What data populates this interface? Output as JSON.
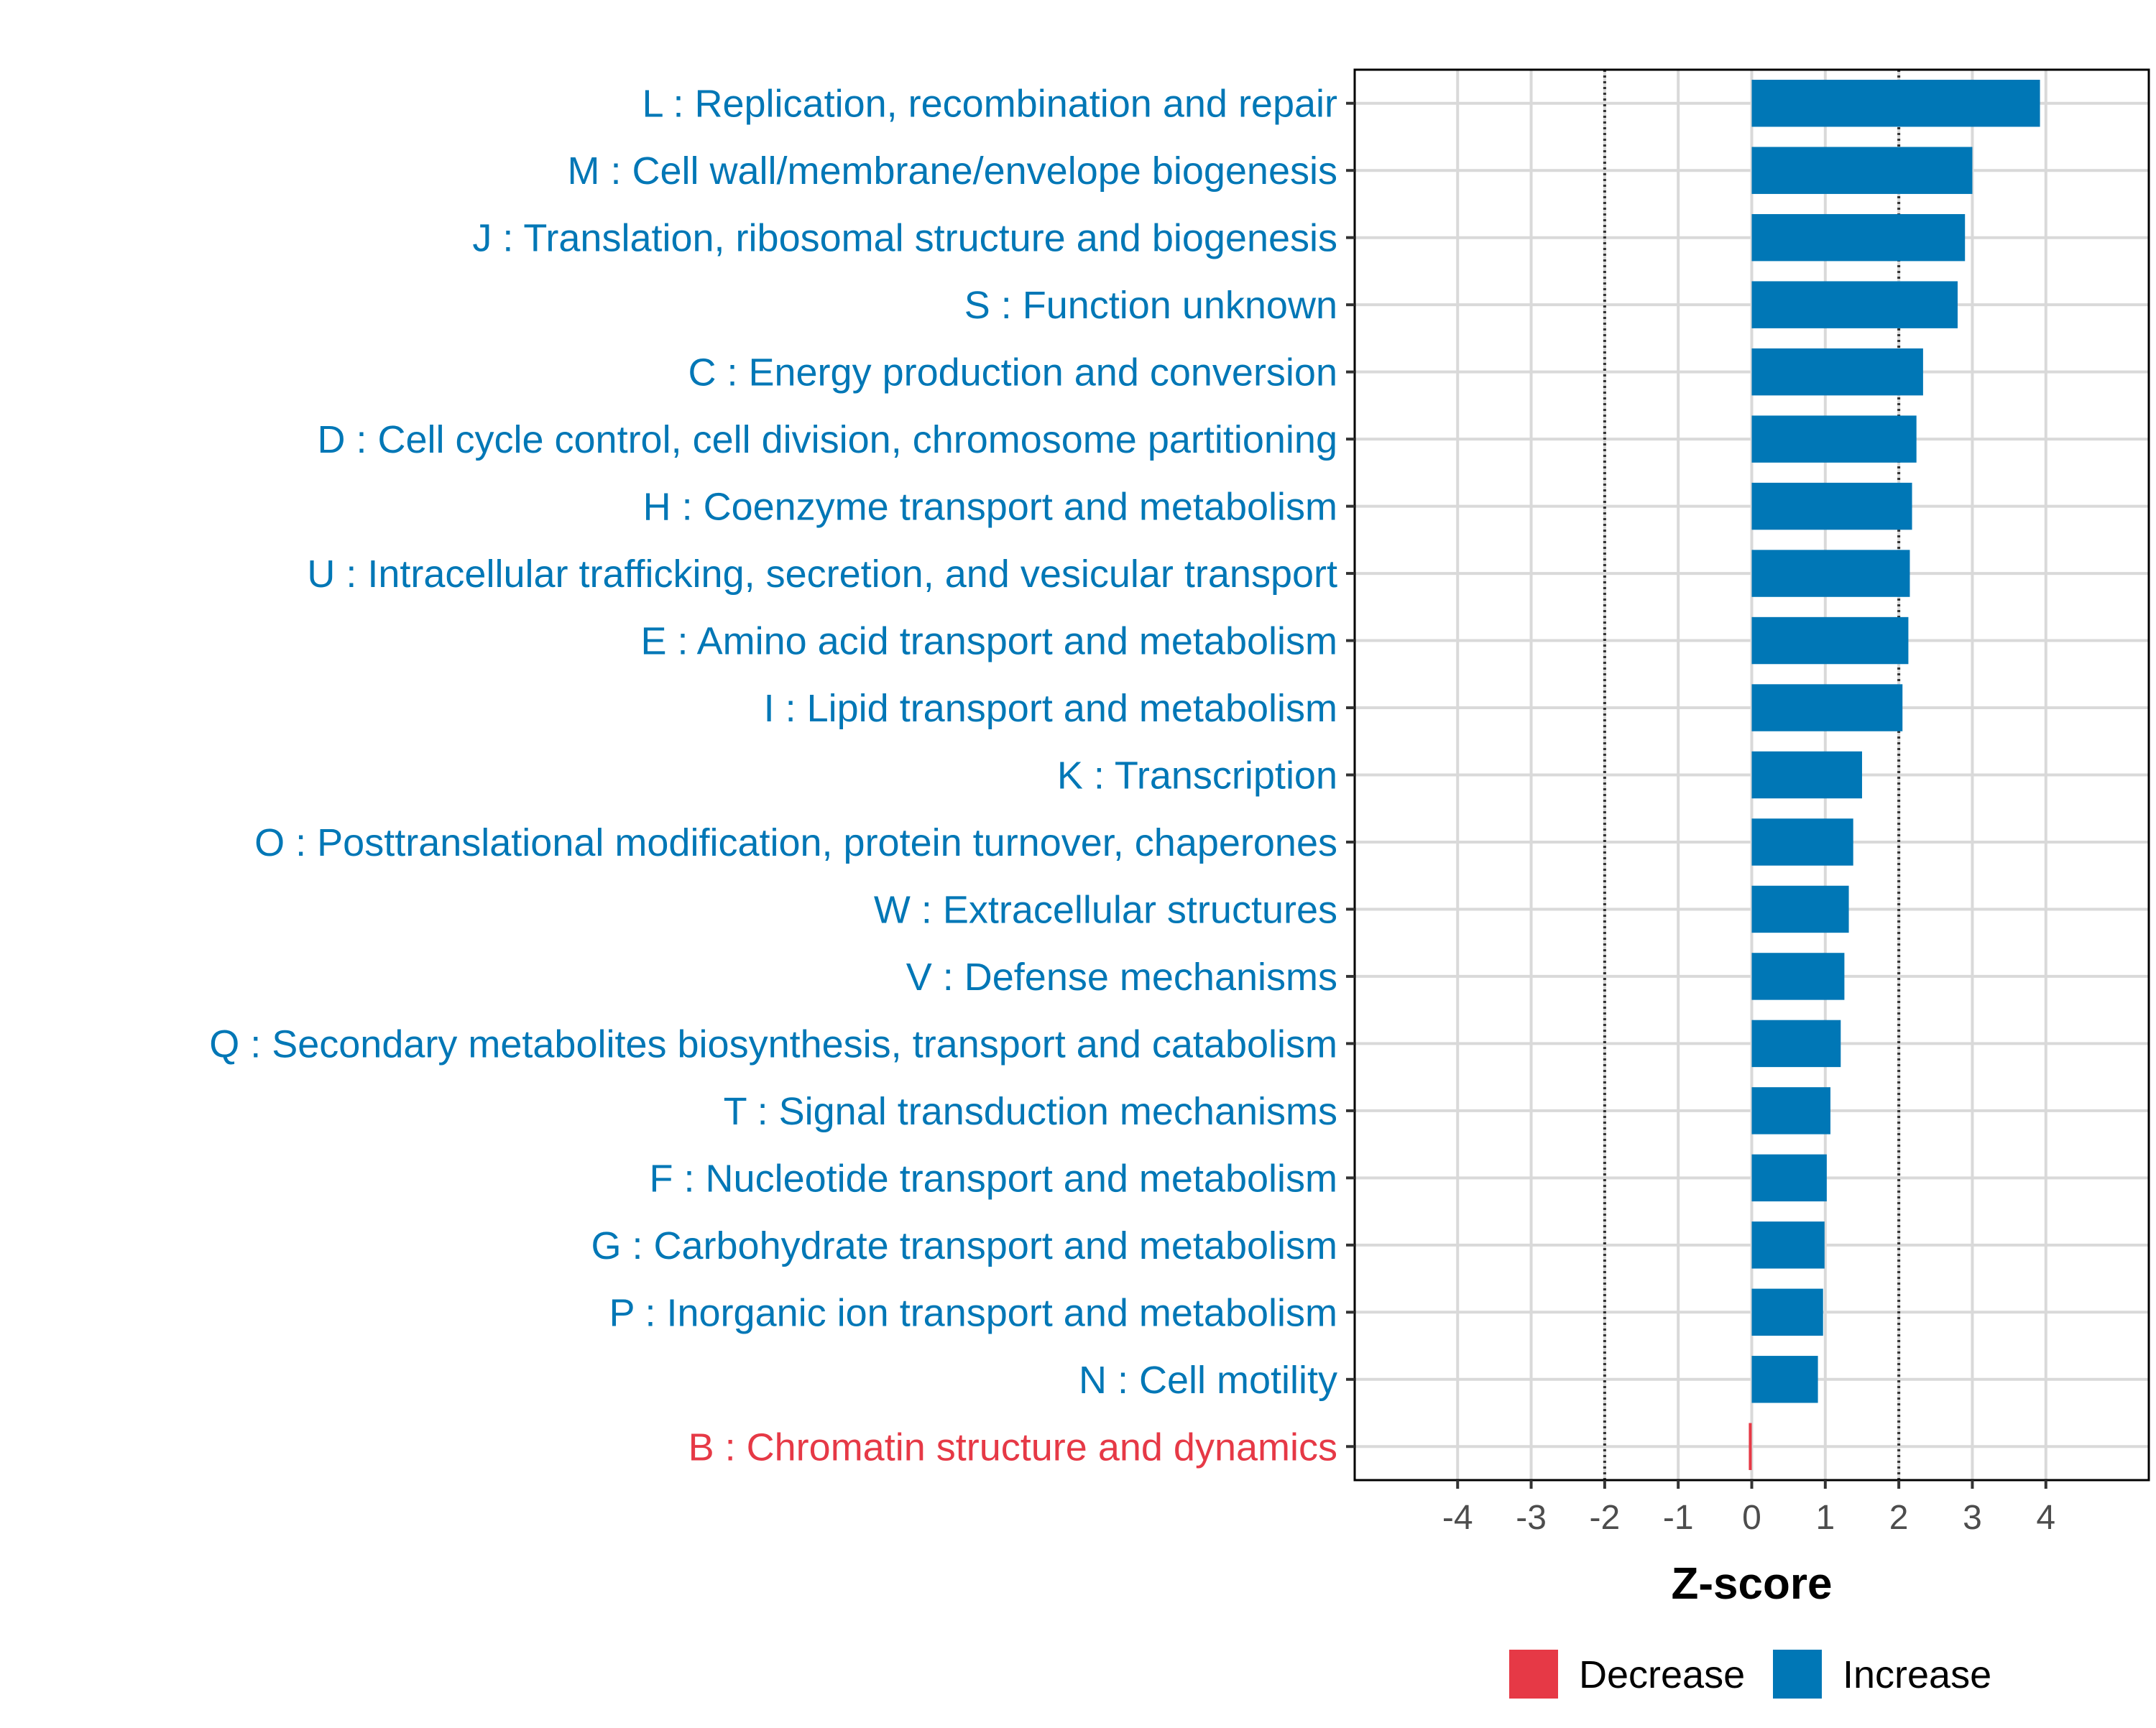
{
  "chart_data": {
    "type": "bar",
    "orientation": "horizontal",
    "categories": [
      "L : Replication, recombination and repair",
      "M : Cell wall/membrane/envelope biogenesis",
      "J : Translation, ribosomal structure and biogenesis",
      "S : Function unknown",
      "C : Energy production and conversion",
      "D : Cell cycle control, cell division, chromosome partitioning",
      "H : Coenzyme transport and metabolism",
      "U : Intracellular trafficking, secretion, and vesicular transport",
      "E : Amino acid transport and metabolism",
      "I : Lipid transport and metabolism",
      "K : Transcription",
      "O : Posttranslational modification, protein turnover, chaperones",
      "W : Extracellular structures",
      "V : Defense mechanisms",
      "Q : Secondary metabolites biosynthesis, transport and catabolism",
      "T : Signal transduction mechanisms",
      "F : Nucleotide transport and metabolism",
      "G : Carbohydrate transport and metabolism",
      "P : Inorganic ion transport and metabolism",
      "N : Cell motility",
      "B : Chromatin structure and dynamics"
    ],
    "values": [
      3.92,
      3.0,
      2.9,
      2.8,
      2.33,
      2.24,
      2.18,
      2.15,
      2.13,
      2.05,
      1.5,
      1.38,
      1.32,
      1.26,
      1.21,
      1.07,
      1.02,
      0.99,
      0.97,
      0.9,
      -0.04
    ],
    "groups": [
      "Increase",
      "Increase",
      "Increase",
      "Increase",
      "Increase",
      "Increase",
      "Increase",
      "Increase",
      "Increase",
      "Increase",
      "Increase",
      "Increase",
      "Increase",
      "Increase",
      "Increase",
      "Increase",
      "Increase",
      "Increase",
      "Increase",
      "Increase",
      "Decrease"
    ],
    "xlabel": "Z-score",
    "ylabel": "",
    "xlim": [
      -5.4,
      5.4
    ],
    "xticks": [
      -4,
      -3,
      -2,
      -1,
      0,
      1,
      2,
      3,
      4
    ],
    "xtick_labels": [
      "-4",
      "-3",
      "-2",
      "-1",
      "0",
      "1",
      "2",
      "3",
      "4"
    ],
    "reference_lines": [
      -2,
      2
    ],
    "grid": true,
    "legend": {
      "position": "bottom",
      "entries": [
        {
          "label": "Decrease",
          "color": "#e63946"
        },
        {
          "label": "Increase",
          "color": "#0077b6"
        }
      ]
    },
    "colors": {
      "Increase": "#0077b6",
      "Decrease": "#e63946"
    }
  }
}
